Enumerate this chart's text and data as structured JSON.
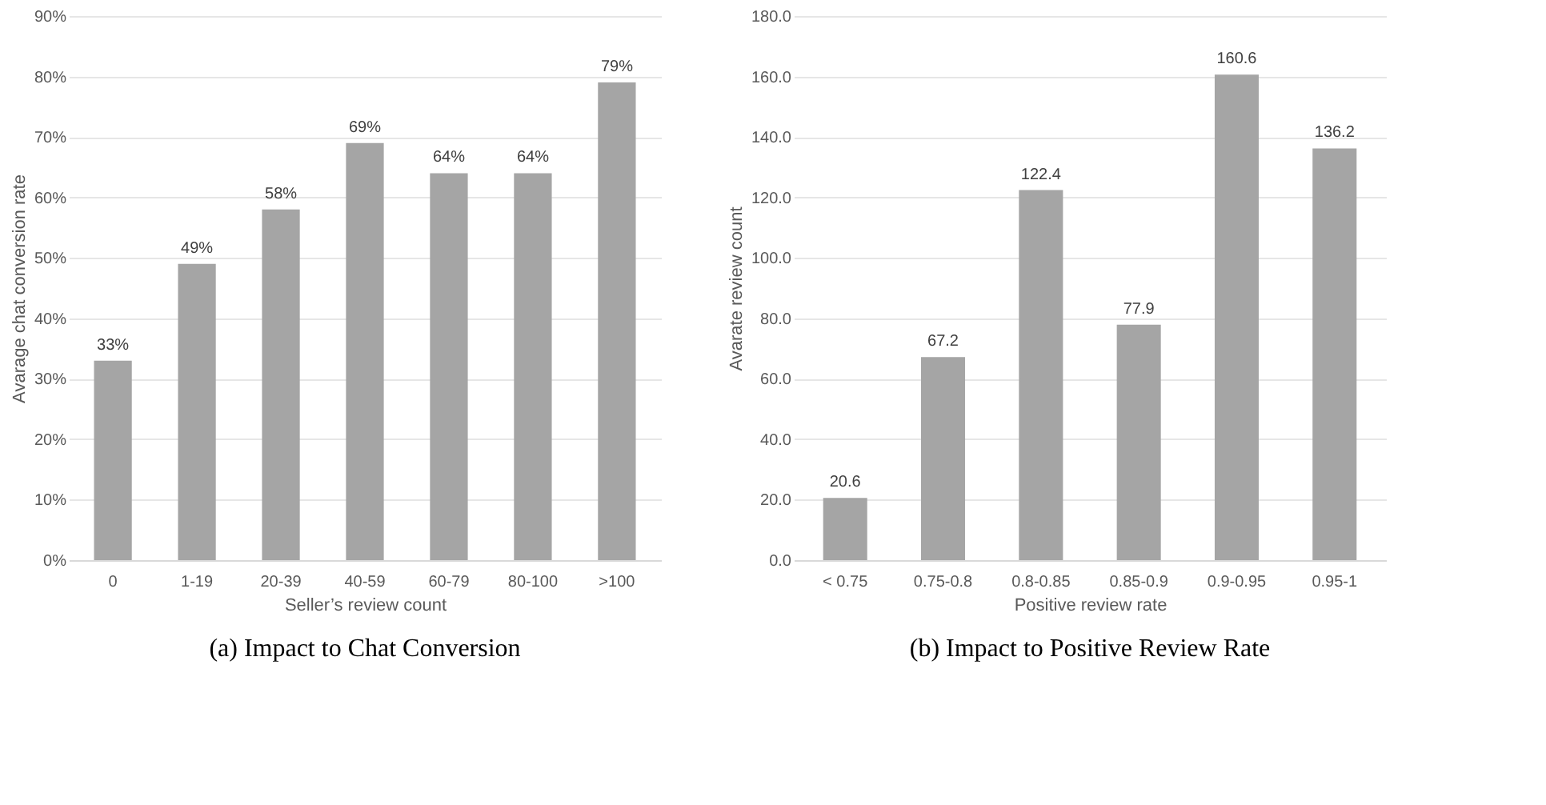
{
  "chart_data": [
    {
      "type": "bar",
      "title": "(a)  Impact to Chat Conversion",
      "xlabel": "Seller’s review count",
      "ylabel": "Avarage chat conversion rate",
      "categories": [
        "0",
        "1-19",
        "20-39",
        "40-59",
        "60-79",
        "80-100",
        ">100"
      ],
      "values": [
        33,
        49,
        58,
        69,
        64,
        64,
        79
      ],
      "value_labels": [
        "33%",
        "49%",
        "58%",
        "69%",
        "64%",
        "64%",
        "79%"
      ],
      "color": "#a5a5a5",
      "ylim": [
        0,
        90
      ],
      "yticks": [
        {
          "value": 0,
          "label": "0%"
        },
        {
          "value": 10,
          "label": "10%"
        },
        {
          "value": 20,
          "label": "20%"
        },
        {
          "value": 30,
          "label": "30%"
        },
        {
          "value": 40,
          "label": "40%"
        },
        {
          "value": 50,
          "label": "50%"
        },
        {
          "value": 60,
          "label": "60%"
        },
        {
          "value": 70,
          "label": "70%"
        },
        {
          "value": 80,
          "label": "80%"
        },
        {
          "value": 90,
          "label": "90%"
        }
      ],
      "grid": "y"
    },
    {
      "type": "bar",
      "title": "(b)  Impact to Positive Review Rate",
      "xlabel": "Positive review rate",
      "ylabel": "Avarate review count",
      "categories": [
        "< 0.75",
        "0.75-0.8",
        "0.8-0.85",
        "0.85-0.9",
        "0.9-0.95",
        "0.95-1"
      ],
      "values": [
        20.6,
        67.2,
        122.4,
        77.9,
        160.6,
        136.2
      ],
      "data_labels": true,
      "color": "#a5a5a5",
      "ylim": [
        0,
        180
      ],
      "yticks": [
        {
          "value": 0,
          "label": "0.0"
        },
        {
          "value": 20,
          "label": "20.0"
        },
        {
          "value": 40,
          "label": "40.0"
        },
        {
          "value": 60,
          "label": "60.0"
        },
        {
          "value": 80,
          "label": "80.0"
        },
        {
          "value": 100,
          "label": "100.0"
        },
        {
          "value": 120,
          "label": "120.0"
        },
        {
          "value": 140,
          "label": "140.0"
        },
        {
          "value": 160,
          "label": "160.0"
        },
        {
          "value": 180,
          "label": "180.0"
        }
      ],
      "grid": "y"
    }
  ]
}
